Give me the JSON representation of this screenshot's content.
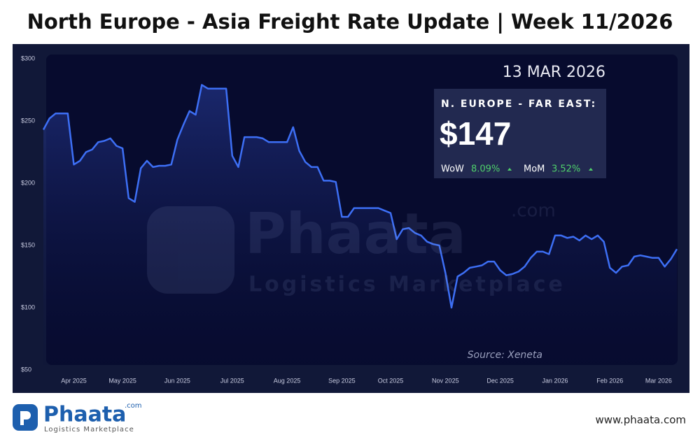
{
  "title": "North Europe - Asia Freight Rate Update | Week 11/2026",
  "chart_data": {
    "type": "line",
    "color": "#3d6ff5",
    "categories": [
      null,
      null,
      null,
      null,
      null,
      "Apr 2025",
      null,
      null,
      null,
      null,
      null,
      null,
      null,
      "May 2025",
      null,
      null,
      null,
      null,
      null,
      null,
      null,
      null,
      "Jun 2025",
      null,
      null,
      null,
      null,
      null,
      null,
      null,
      null,
      "Jul 2025",
      null,
      null,
      null,
      null,
      null,
      null,
      null,
      null,
      "Aug 2025",
      null,
      null,
      null,
      null,
      null,
      null,
      null,
      null,
      "Sep 2025",
      null,
      null,
      null,
      null,
      null,
      null,
      null,
      "Oct 2025",
      null,
      null,
      null,
      null,
      null,
      null,
      null,
      null,
      "Nov 2025",
      null,
      null,
      null,
      null,
      null,
      null,
      null,
      null,
      "Dec 2025",
      null,
      null,
      null,
      null,
      null,
      null,
      null,
      null,
      "Jan 2026",
      null,
      null,
      null,
      null,
      null,
      null,
      null,
      null,
      "Feb 2026",
      null,
      null,
      null,
      null,
      null,
      null,
      null,
      "Mar 2026",
      null,
      null,
      null
    ],
    "values": [
      243,
      252,
      256,
      256,
      256,
      215,
      218,
      225,
      227,
      233,
      234,
      236,
      230,
      228,
      188,
      185,
      212,
      218,
      213,
      214,
      214,
      215,
      235,
      247,
      258,
      255,
      279,
      276,
      276,
      276,
      276,
      222,
      213,
      237,
      237,
      237,
      236,
      233,
      233,
      233,
      233,
      245,
      226,
      217,
      213,
      213,
      202,
      202,
      201,
      173,
      173,
      180,
      180,
      180,
      180,
      180,
      178,
      176,
      155,
      163,
      164,
      160,
      158,
      153,
      151,
      150,
      128,
      100,
      125,
      128,
      132,
      133,
      134,
      137,
      137,
      130,
      126,
      127,
      129,
      133,
      140,
      145,
      145,
      143,
      158,
      158,
      156,
      157,
      154,
      158,
      155,
      158,
      153,
      132,
      128,
      133,
      134,
      141,
      142,
      141,
      140,
      140,
      133,
      139,
      147
    ],
    "ylim": [
      50,
      300
    ],
    "yticks": [
      {
        "value": 300,
        "label": "$300"
      },
      {
        "value": 250,
        "label": "$250"
      },
      {
        "value": 200,
        "label": "$200"
      },
      {
        "value": 150,
        "label": "$150"
      },
      {
        "value": 100,
        "label": "$100"
      },
      {
        "value": 50,
        "label": "$50"
      }
    ],
    "annotation": "Source: Xeneta"
  },
  "info_box": {
    "date": "13 MAR 2026",
    "route": "N. EUROPE - FAR EAST:",
    "price": "$147",
    "wow_label": "WoW",
    "wow_value": "8.09%",
    "mom_label": "MoM",
    "mom_value": "3.52%"
  },
  "footer": {
    "logo": "Phaata",
    "logo_suffix": ".com",
    "tagline": "Logistics Marketplace",
    "website": "www.phaata.com"
  }
}
